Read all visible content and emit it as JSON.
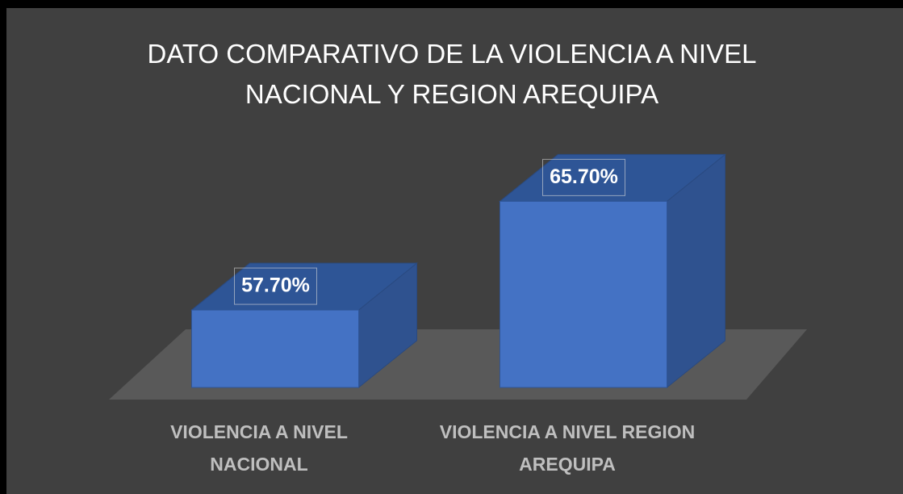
{
  "chart_data": {
    "type": "bar3d",
    "title": "DATO COMPARATIVO DE LA VIOLENCIA A NIVEL NACIONAL Y REGION AREQUIPA",
    "categories": [
      "VIOLENCIA A NIVEL NACIONAL",
      "VIOLENCIA A NIVEL REGION AREQUIPA"
    ],
    "values": [
      57.7,
      65.7
    ],
    "value_labels": [
      "57.70%",
      "65.70%"
    ],
    "color": "#4472c4",
    "ylim": [
      52,
      70
    ]
  }
}
